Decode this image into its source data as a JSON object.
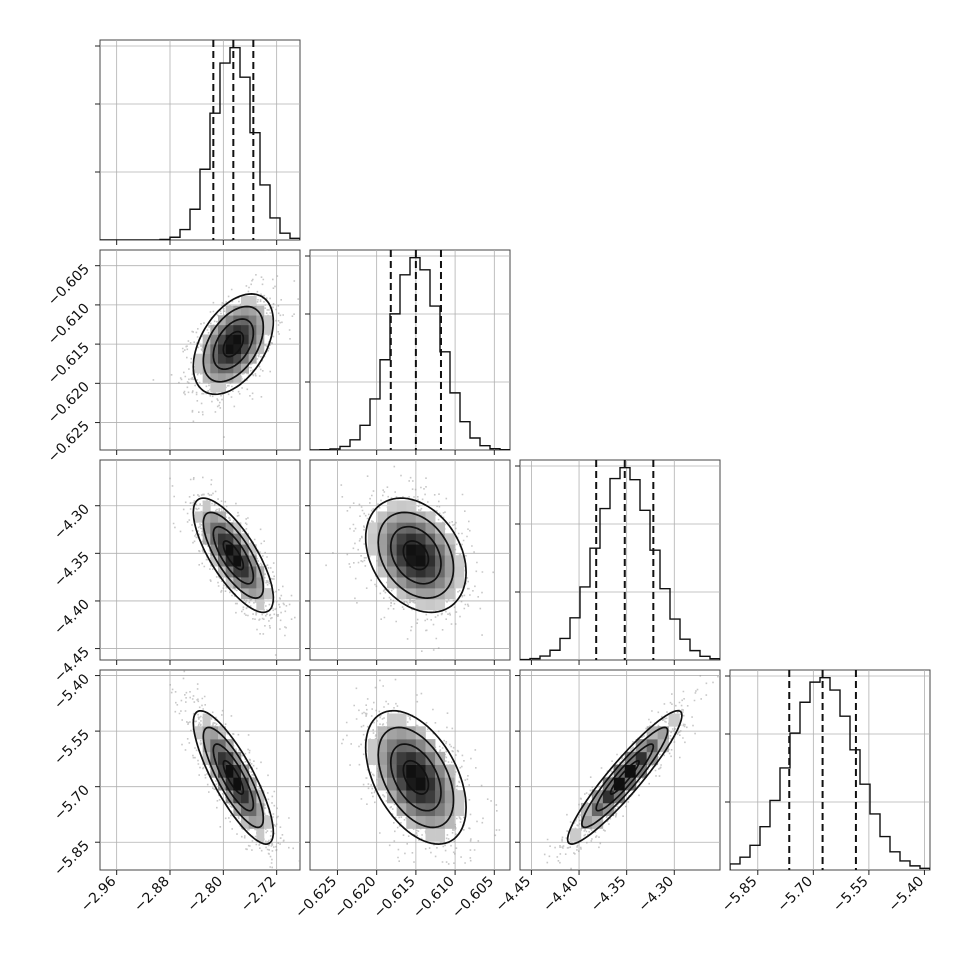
{
  "chart_data": {
    "type": "corner",
    "grid": true,
    "parameters": [
      {
        "index": 0,
        "mean": -2.785,
        "sd": 0.03,
        "range": [
          -2.985,
          -2.685
        ],
        "ticks": [
          -2.96,
          -2.88,
          -2.8,
          -2.72
        ],
        "tick_labels": [
          "−2.96",
          "−2.88",
          "−2.80",
          "−2.72"
        ],
        "quantiles": [
          -2.815,
          -2.785,
          -2.755
        ]
      },
      {
        "index": 1,
        "mean": -0.615,
        "sd": 0.0032,
        "range": [
          -0.6285,
          -0.603
        ],
        "ticks": [
          -0.625,
          -0.62,
          -0.615,
          -0.61,
          -0.605
        ],
        "tick_labels": [
          "−0.625",
          "−0.620",
          "−0.615",
          "−0.610",
          "−0.605"
        ],
        "quantiles": [
          -0.6182,
          -0.615,
          -0.6118
        ]
      },
      {
        "index": 2,
        "mean": -4.352,
        "sd": 0.03,
        "range": [
          -4.462,
          -4.252
        ],
        "ticks": [
          -4.45,
          -4.4,
          -4.35,
          -4.3
        ],
        "tick_labels": [
          "−4.45",
          "−4.40",
          "−4.35",
          "−4.30"
        ],
        "quantiles": [
          -4.382,
          -4.352,
          -4.322
        ]
      },
      {
        "index": 3,
        "mean": -5.675,
        "sd": 0.09,
        "range": [
          -5.925,
          -5.385
        ],
        "ticks": [
          -5.85,
          -5.7,
          -5.55,
          -5.4
        ],
        "tick_labels": [
          "−5.85",
          "−5.70",
          "−5.55",
          "−5.40"
        ],
        "quantiles": [
          -5.765,
          -5.675,
          -5.585
        ]
      }
    ],
    "y_axis_ticks": {
      "row1": {
        "ticks": [
          -0.605,
          -0.61,
          -0.615,
          -0.62,
          -0.625
        ],
        "tick_labels": [
          "−0.605",
          "−0.610",
          "−0.615",
          "−0.620",
          "−0.625"
        ]
      },
      "row2": {
        "ticks": [
          -4.3,
          -4.35,
          -4.4,
          -4.45
        ],
        "tick_labels": [
          "−4.30",
          "−4.35",
          "−4.40",
          "−4.45"
        ]
      },
      "row3": {
        "ticks": [
          -5.4,
          -5.55,
          -5.7,
          -5.85
        ],
        "tick_labels": [
          "−5.40",
          "−5.55",
          "−5.70",
          "−5.85"
        ]
      }
    },
    "correlations": [
      {
        "row": 1,
        "col": 0,
        "rho": 0.45
      },
      {
        "row": 2,
        "col": 0,
        "rho": -0.75
      },
      {
        "row": 2,
        "col": 1,
        "rho": -0.3
      },
      {
        "row": 3,
        "col": 0,
        "rho": -0.82
      },
      {
        "row": 3,
        "col": 1,
        "rho": -0.45
      },
      {
        "row": 3,
        "col": 2,
        "rho": 0.93
      }
    ],
    "histogram_bins": 20,
    "colors": {
      "frame": "#444444",
      "grid": "#b0b0b0",
      "line": "#111111",
      "points": "#9a9a9a"
    }
  }
}
